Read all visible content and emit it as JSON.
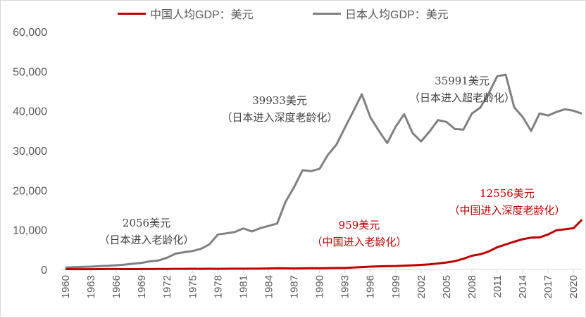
{
  "chart_data": {
    "type": "line",
    "title": "",
    "xlabel": "",
    "ylabel": "",
    "ylim": [
      0,
      60000
    ],
    "xlim": [
      1960,
      2021
    ],
    "grid": false,
    "legend_placement": "top",
    "y_ticks": [
      "0",
      "10,000",
      "20,000",
      "30,000",
      "40,000",
      "50,000",
      "60,000"
    ],
    "y_tick_values": [
      0,
      10000,
      20000,
      30000,
      40000,
      50000,
      60000
    ],
    "x_ticks": [
      "1960",
      "1963",
      "1966",
      "1969",
      "1972",
      "1975",
      "1978",
      "1981",
      "1984",
      "1987",
      "1990",
      "1993",
      "1996",
      "1999",
      "2002",
      "2005",
      "2008",
      "2011",
      "2014",
      "2017",
      "2020"
    ],
    "x": [
      1960,
      1961,
      1962,
      1963,
      1964,
      1965,
      1966,
      1967,
      1968,
      1969,
      1970,
      1971,
      1972,
      1973,
      1974,
      1975,
      1976,
      1977,
      1978,
      1979,
      1980,
      1981,
      1982,
      1983,
      1984,
      1985,
      1986,
      1987,
      1988,
      1989,
      1990,
      1991,
      1992,
      1993,
      1994,
      1995,
      1996,
      1997,
      1998,
      1999,
      2000,
      2001,
      2002,
      2003,
      2004,
      2005,
      2006,
      2007,
      2008,
      2009,
      2010,
      2011,
      2012,
      2013,
      2014,
      2015,
      2016,
      2017,
      2018,
      2019,
      2020,
      2021
    ],
    "series": [
      {
        "name": "中国人均GDP：美元",
        "color": "#c00000",
        "values": [
          90,
          76,
          70,
          74,
          85,
          98,
          104,
          97,
          91,
          100,
          113,
          119,
          132,
          157,
          160,
          178,
          165,
          185,
          156,
          184,
          195,
          197,
          203,
          225,
          251,
          294,
          282,
          252,
          284,
          311,
          318,
          333,
          366,
          377,
          473,
          610,
          709,
          782,
          829,
          873,
          959,
          1053,
          1149,
          1289,
          1509,
          1753,
          2099,
          2694,
          3468,
          3832,
          4550,
          5614,
          6301,
          7020,
          7636,
          8016,
          8094,
          8817,
          9905,
          10144,
          10409,
          12556
        ]
      },
      {
        "name": "日本人均GDP：美元",
        "color": "#808080",
        "values": [
          479,
          564,
          633,
          717,
          836,
          919,
          1059,
          1229,
          1450,
          1669,
          2056,
          2272,
          2967,
          3997,
          4354,
          4659,
          5198,
          6335,
          8821,
          9106,
          9463,
          10361,
          9578,
          10425,
          10984,
          11585,
          17112,
          20745,
          25051,
          24813,
          25371,
          28925,
          31465,
          35766,
          39933,
          44198,
          38437,
          35022,
          31903,
          36027,
          39169,
          34406,
          32289,
          34808,
          37689,
          37218,
          35434,
          35275,
          39339,
          40855,
          44508,
          48760,
          49145,
          40898,
          38475,
          34961,
          39375,
          38834,
          39751,
          40416,
          40040,
          39313
        ]
      }
    ],
    "annotations": [
      {
        "value": "2056美元",
        "note": "（日本进入老龄化）",
        "series": "日本人均GDP：美元"
      },
      {
        "value": "39933美元",
        "note": "（日本进入深度老龄化）",
        "series": "日本人均GDP：美元"
      },
      {
        "value": "35991美元",
        "note": "（日本进入超老龄化）",
        "series": "日本人均GDP：美元"
      },
      {
        "value": "959美元",
        "note": "（中国进入老龄化）",
        "series": "中国人均GDP：美元"
      },
      {
        "value": "12556美元",
        "note": "（中国进入深度老龄化）",
        "series": "中国人均GDP：美元"
      }
    ]
  }
}
